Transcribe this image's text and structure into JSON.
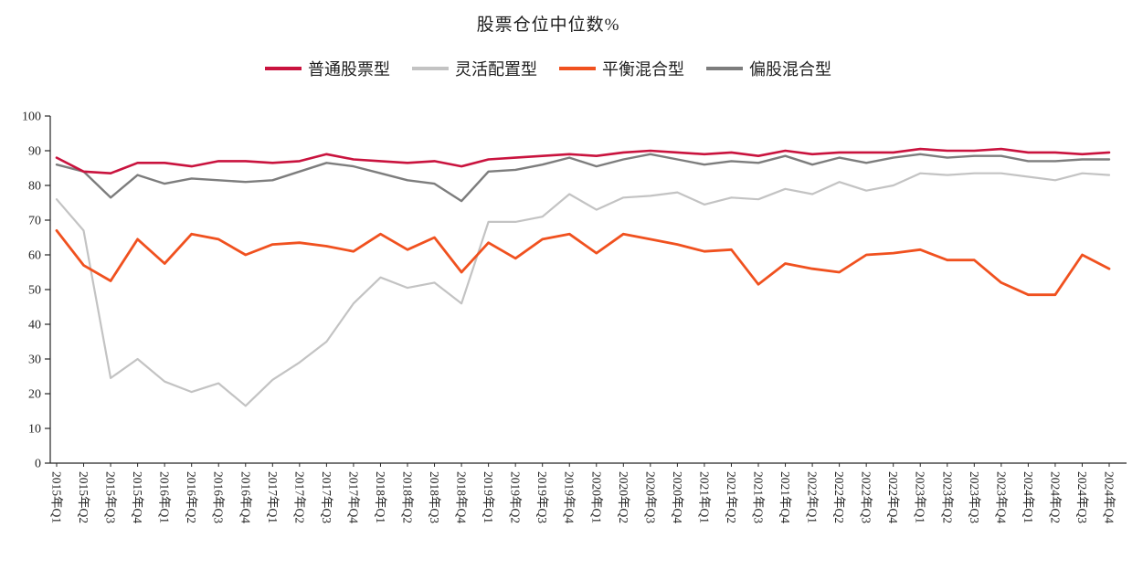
{
  "chart_data": {
    "type": "line",
    "title": "股票仓位中位数%",
    "xlabel": "",
    "ylabel": "",
    "ylim": [
      0,
      100
    ],
    "yticks": [
      0,
      10,
      20,
      30,
      40,
      50,
      60,
      70,
      80,
      90,
      100
    ],
    "grid": false,
    "legend_position": "top",
    "background_color": "#ffffff",
    "axis_color": "#262626",
    "categories": [
      "2015年Q1",
      "2015年Q2",
      "2015年Q3",
      "2015年Q4",
      "2016年Q1",
      "2016年Q2",
      "2016年Q3",
      "2016年Q4",
      "2017年Q1",
      "2017年Q2",
      "2017年Q3",
      "2017年Q4",
      "2018年Q1",
      "2018年Q2",
      "2018年Q3",
      "2018年Q4",
      "2019年Q1",
      "2019年Q2",
      "2019年Q3",
      "2019年Q4",
      "2020年Q1",
      "2020年Q2",
      "2020年Q3",
      "2020年Q4",
      "2021年Q1",
      "2021年Q2",
      "2021年Q3",
      "2021年Q4",
      "2022年Q1",
      "2022年Q2",
      "2022年Q3",
      "2022年Q4",
      "2023年Q1",
      "2023年Q2",
      "2023年Q3",
      "2023年Q4",
      "2024年Q1",
      "2024年Q2",
      "2024年Q3",
      "2024年Q4"
    ],
    "series": [
      {
        "name": "普通股票型",
        "color": "#c9133e",
        "z": 4,
        "values": [
          88,
          84,
          83.5,
          86.5,
          86.5,
          85.5,
          87,
          87,
          86.5,
          87,
          89,
          87.5,
          87,
          86.5,
          87,
          85.5,
          87.5,
          88,
          88.5,
          89,
          88.5,
          89.5,
          90,
          89.5,
          89,
          89.5,
          88.5,
          90,
          89,
          89.5,
          89.5,
          89.5,
          90.5,
          90,
          90,
          90.5,
          89.5,
          89.5,
          89,
          89.5
        ]
      },
      {
        "name": "灵活配置型",
        "color": "#c3c3c3",
        "z": 1,
        "values": [
          76,
          67,
          24.5,
          30,
          23.5,
          20.5,
          23,
          16.5,
          24,
          29,
          35,
          46,
          53.5,
          50.5,
          52,
          46,
          69.5,
          69.5,
          71,
          77.5,
          73,
          76.5,
          77,
          78,
          74.5,
          76.5,
          76,
          79,
          77.5,
          81,
          78.5,
          80,
          83.5,
          83,
          83.5,
          83.5,
          82.5,
          81.5,
          83.5,
          83
        ]
      },
      {
        "name": "平衡混合型",
        "color": "#f0511f",
        "z": 3,
        "values": [
          67,
          57,
          52.5,
          64.5,
          57.5,
          66,
          64.5,
          60,
          63,
          63.5,
          62.5,
          61,
          66,
          61.5,
          65,
          55,
          63.5,
          59,
          64.5,
          66,
          60.5,
          66,
          64.5,
          63,
          61,
          61.5,
          51.5,
          57.5,
          56,
          55,
          60,
          60.5,
          61.5,
          58.5,
          58.5,
          52,
          48.5,
          48.5,
          60,
          56
        ]
      },
      {
        "name": "偏股混合型",
        "color": "#7d7d7d",
        "z": 2,
        "values": [
          86,
          84,
          76.5,
          83,
          80.5,
          82,
          81.5,
          81,
          81.5,
          84,
          86.5,
          85.5,
          83.5,
          81.5,
          80.5,
          75.5,
          84,
          84.5,
          86,
          88,
          85.5,
          87.5,
          89,
          87.5,
          86,
          87,
          86.5,
          88.5,
          86,
          88,
          86.5,
          88,
          89,
          88,
          88.5,
          88.5,
          87,
          87,
          87.5,
          87.5
        ]
      }
    ]
  }
}
